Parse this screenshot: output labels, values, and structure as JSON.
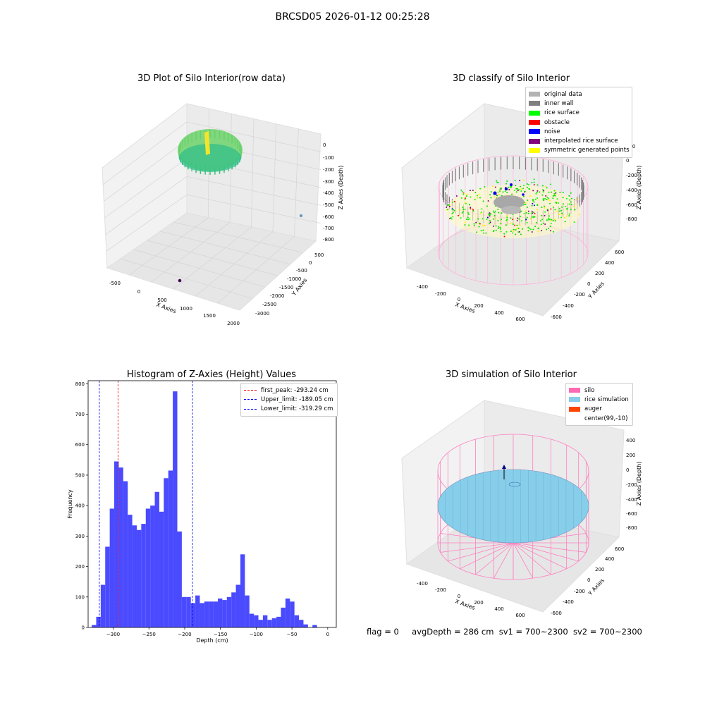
{
  "suptitle": "BRCSD05 2026-01-12 00:25:28",
  "panels": {
    "raw": {
      "title": "3D Plot of Silo Interior(row data)",
      "xlabel": "X Axies",
      "ylabel": "Y Axies",
      "zlabel": "Z Axies (Depth)",
      "xticks": [
        "-500",
        "0",
        "500",
        "1000",
        "1500",
        "2000"
      ],
      "yticks": [
        "500",
        "0",
        "-500",
        "-1000",
        "-1500",
        "-2000",
        "-2500",
        "-3000"
      ],
      "zticks": [
        "0",
        "-100",
        "-200",
        "-300",
        "-400",
        "-500",
        "-600",
        "-700",
        "-800"
      ]
    },
    "classify": {
      "title": "3D classify of Silo Interior",
      "xlabel": "X Axies",
      "ylabel": "Y Axies",
      "zlabel": "Z Axies (Depth)",
      "xticks": [
        "-400",
        "-200",
        "0",
        "200",
        "400",
        "600"
      ],
      "yticks": [
        "600",
        "400",
        "200",
        "0",
        "-200",
        "-400",
        "-600"
      ],
      "zticks": [
        "200",
        "0",
        "-200",
        "-400",
        "-600",
        "-800"
      ],
      "legend": [
        {
          "label": "original data",
          "color": "#b3b3b3"
        },
        {
          "label": "inner wall",
          "color": "#808080"
        },
        {
          "label": "rice surface",
          "color": "#00ff00"
        },
        {
          "label": "obstacle",
          "color": "#ff0000"
        },
        {
          "label": "noise",
          "color": "#0000ff"
        },
        {
          "label": "interpolated rice surface",
          "color": "#800080"
        },
        {
          "label": "symmetric generated points",
          "color": "#ffff00"
        }
      ]
    },
    "simulation": {
      "title": "3D simulation of Silo Interior",
      "xlabel": "X Axies",
      "ylabel": "Y Axies",
      "zlabel": "Z Axies (Depth)",
      "xticks": [
        "-400",
        "-200",
        "0",
        "200",
        "400",
        "600"
      ],
      "yticks": [
        "600",
        "400",
        "200",
        "0",
        "-200",
        "-400",
        "-600"
      ],
      "zticks": [
        "400",
        "200",
        "0",
        "-200",
        "-400",
        "-600",
        "-800"
      ],
      "legend": [
        {
          "label": "silo",
          "color": "#ff69b4"
        },
        {
          "label": "rice simulation",
          "color": "#87ceeb"
        },
        {
          "label": "auger",
          "color": "#ff4500"
        },
        {
          "label": "center(99,-10)",
          "color": ""
        }
      ]
    }
  },
  "chart_data": {
    "type": "bar",
    "title": "Histogram of Z-Axies (Height) Values",
    "xlabel": "Depth (cm)",
    "ylabel": "Frequency",
    "xlim": [
      -335,
      12
    ],
    "ylim": [
      0,
      810
    ],
    "xticks": [
      -300,
      -250,
      -200,
      -150,
      -100,
      -50,
      0
    ],
    "yticks": [
      0,
      100,
      200,
      300,
      400,
      500,
      600,
      700,
      800
    ],
    "bar_color": "#4a4aff",
    "bin_width": 6.3,
    "series": [
      {
        "name": "Frequency",
        "bins_start": -330,
        "values": [
          8,
          35,
          140,
          265,
          390,
          545,
          525,
          480,
          370,
          335,
          320,
          340,
          390,
          400,
          445,
          380,
          490,
          515,
          775,
          315,
          100,
          100,
          80,
          105,
          80,
          85,
          85,
          85,
          95,
          90,
          100,
          115,
          140,
          240,
          105,
          45,
          40,
          25,
          40,
          25,
          30,
          35,
          65,
          95,
          85,
          40,
          25,
          10,
          0,
          8
        ]
      }
    ],
    "lines": [
      {
        "label": "first_peak: -293.24 cm",
        "x": -293.24,
        "color": "#ff0000"
      },
      {
        "label": "Upper_limit: -189.05 cm",
        "x": -189.05,
        "color": "#0000ff"
      },
      {
        "label": "Lower_limit: -319.29 cm",
        "x": -319.29,
        "color": "#0000ff"
      }
    ]
  },
  "footer": {
    "flag": "flag = 0",
    "avg_depth": "avgDepth = 286 cm",
    "sv1": "sv1 = 700~2300",
    "sv2": "sv2 = 700~2300"
  }
}
